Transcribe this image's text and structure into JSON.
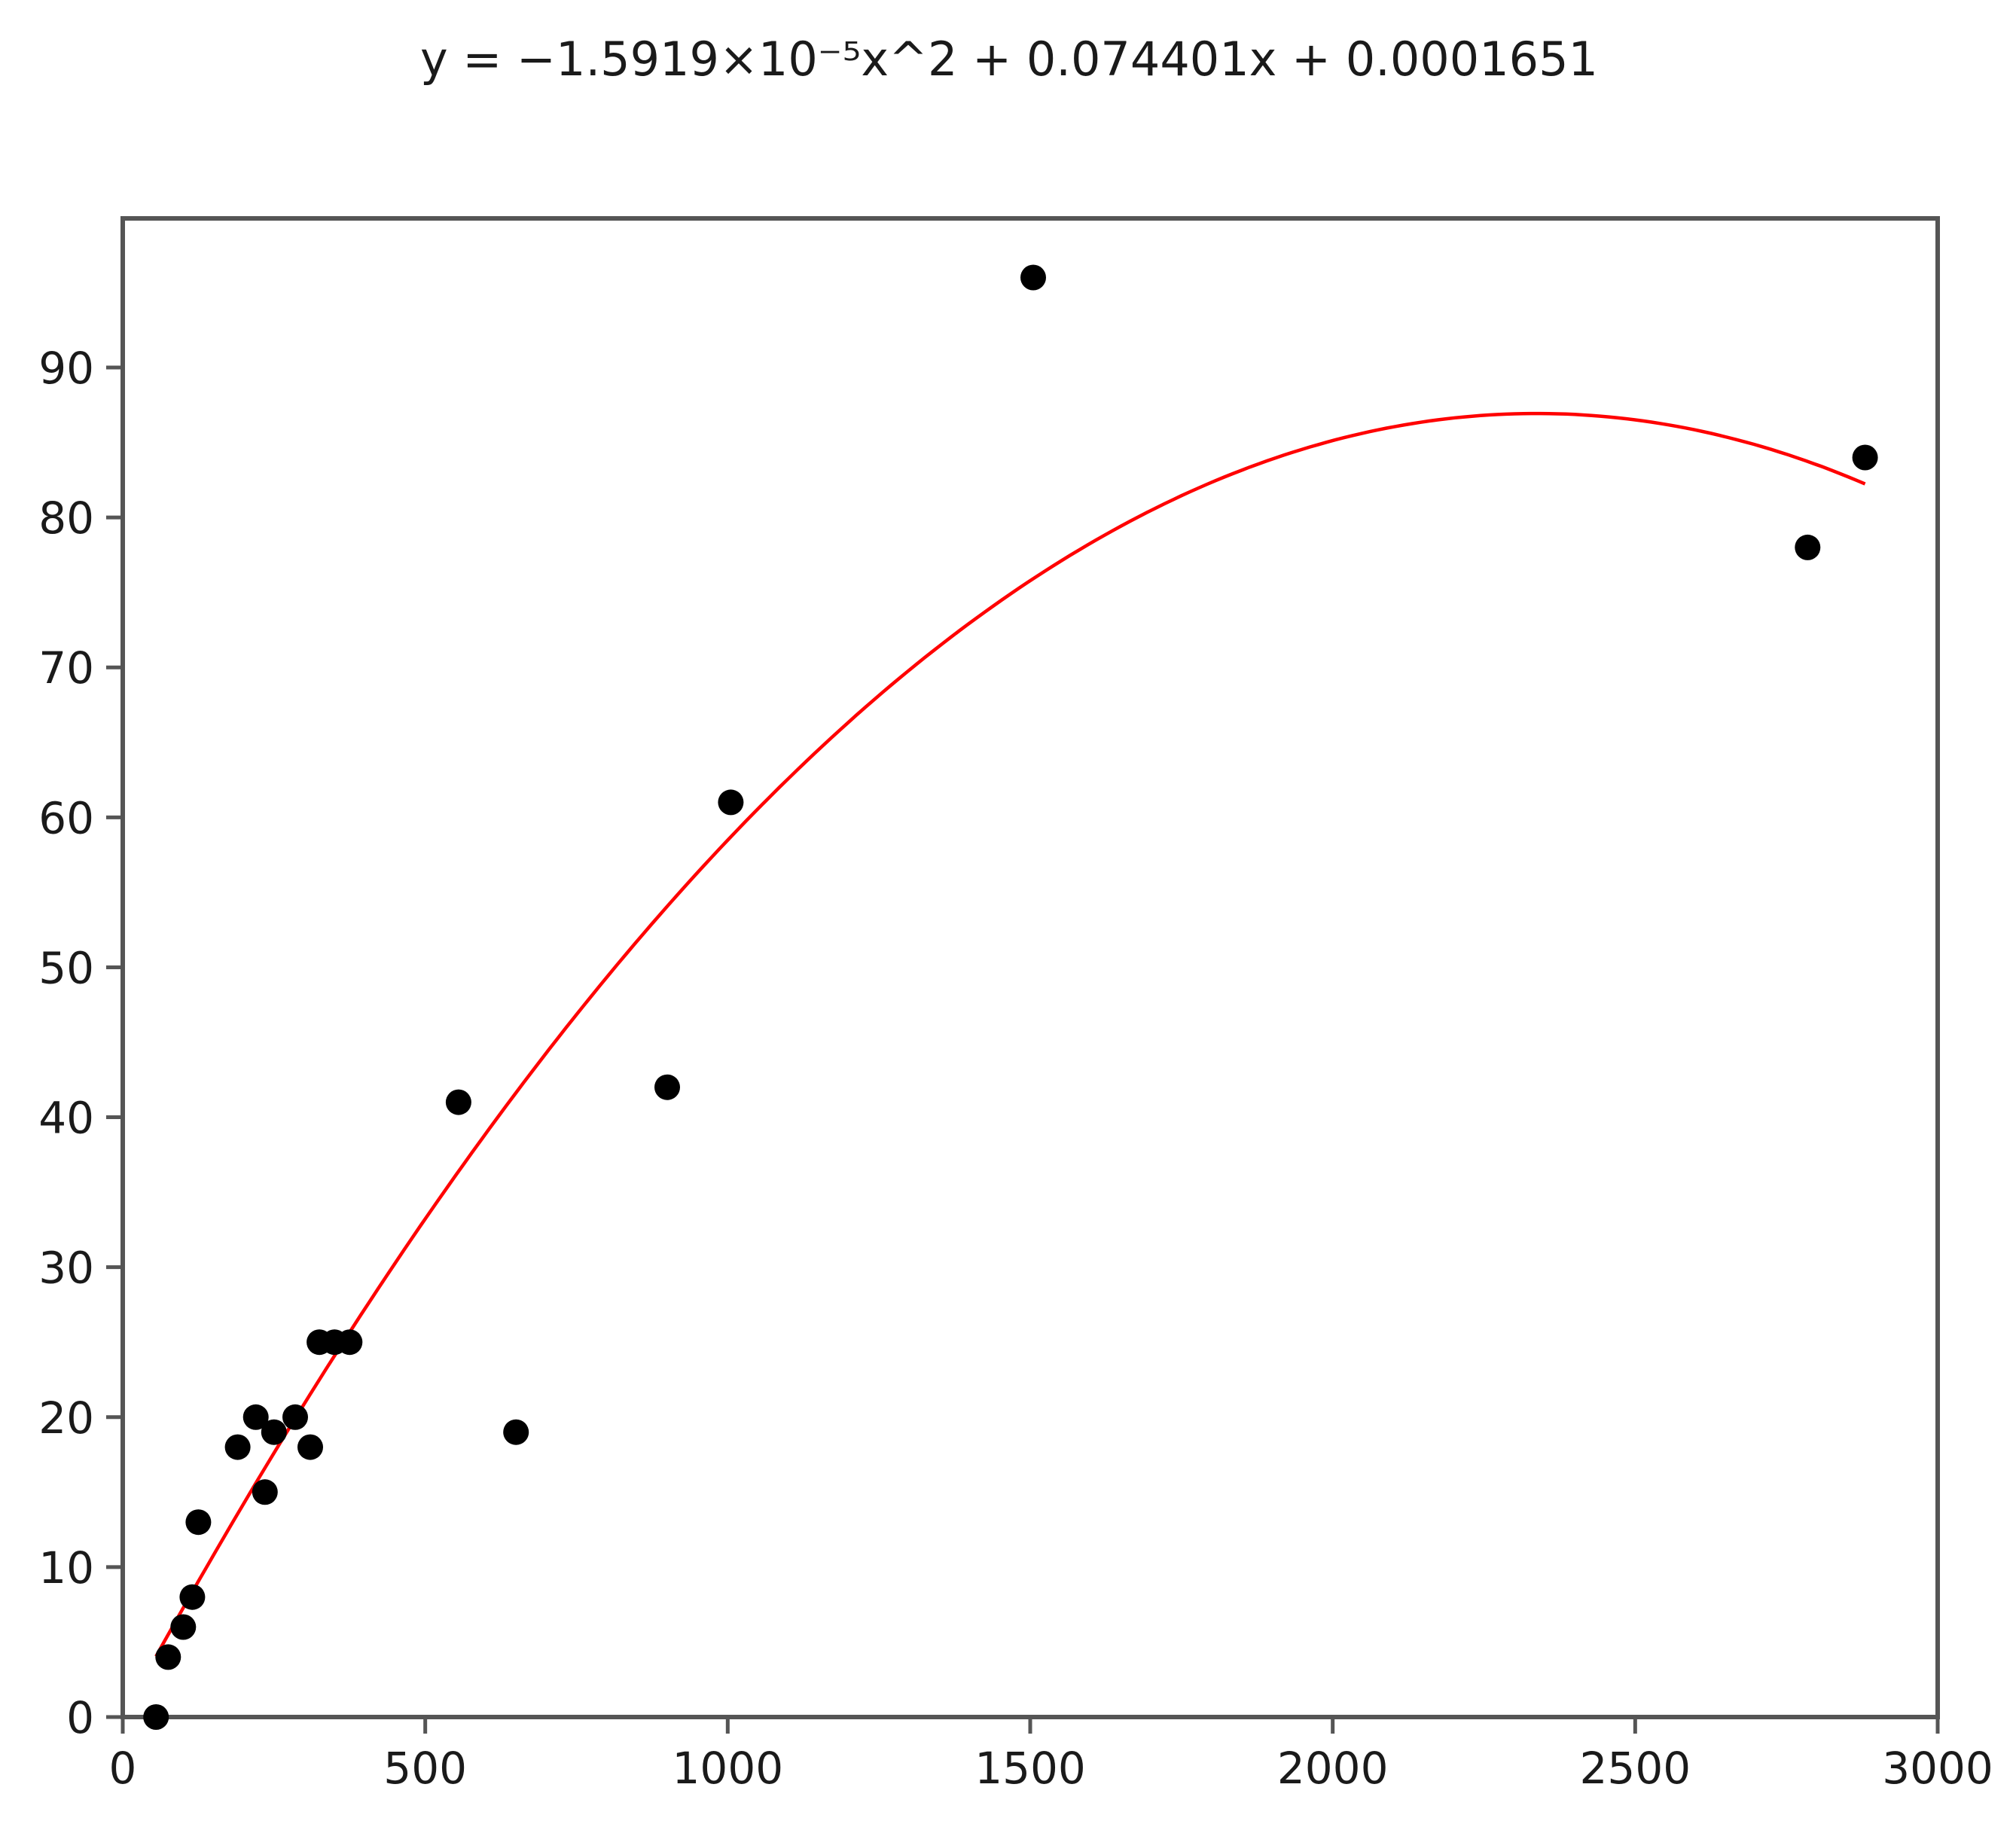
{
  "chart_data": {
    "type": "scatter",
    "title": "y = −1.5919×10⁻⁵x^2 + 0.074401x + 0.0001651",
    "xlabel": "",
    "ylabel": "",
    "xlim": [
      0,
      3000
    ],
    "ylim": [
      0,
      100
    ],
    "xticks": [
      0,
      500,
      1000,
      1500,
      2000,
      2500,
      3000
    ],
    "yticks": [
      0,
      10,
      20,
      30,
      40,
      50,
      60,
      70,
      80,
      90
    ],
    "grid": false,
    "legend": "none",
    "point_color": "#000000",
    "fit_color": "#ff0000",
    "points": [
      {
        "x": 55,
        "y": 0
      },
      {
        "x": 75,
        "y": 4
      },
      {
        "x": 100,
        "y": 6
      },
      {
        "x": 115,
        "y": 8
      },
      {
        "x": 125,
        "y": 13
      },
      {
        "x": 190,
        "y": 18
      },
      {
        "x": 220,
        "y": 20
      },
      {
        "x": 235,
        "y": 15
      },
      {
        "x": 250,
        "y": 19
      },
      {
        "x": 285,
        "y": 20
      },
      {
        "x": 310,
        "y": 18
      },
      {
        "x": 325,
        "y": 25
      },
      {
        "x": 350,
        "y": 25
      },
      {
        "x": 375,
        "y": 25
      },
      {
        "x": 555,
        "y": 41
      },
      {
        "x": 650,
        "y": 19
      },
      {
        "x": 900,
        "y": 42
      },
      {
        "x": 1005,
        "y": 61
      },
      {
        "x": 1505,
        "y": 96
      },
      {
        "x": 2785,
        "y": 78
      },
      {
        "x": 2880,
        "y": 84
      }
    ],
    "fit": {
      "type": "polynomial",
      "coefficients": [
        -1.5919e-05,
        0.074401,
        0.0001651
      ],
      "x_range": [
        55,
        2880
      ]
    }
  }
}
